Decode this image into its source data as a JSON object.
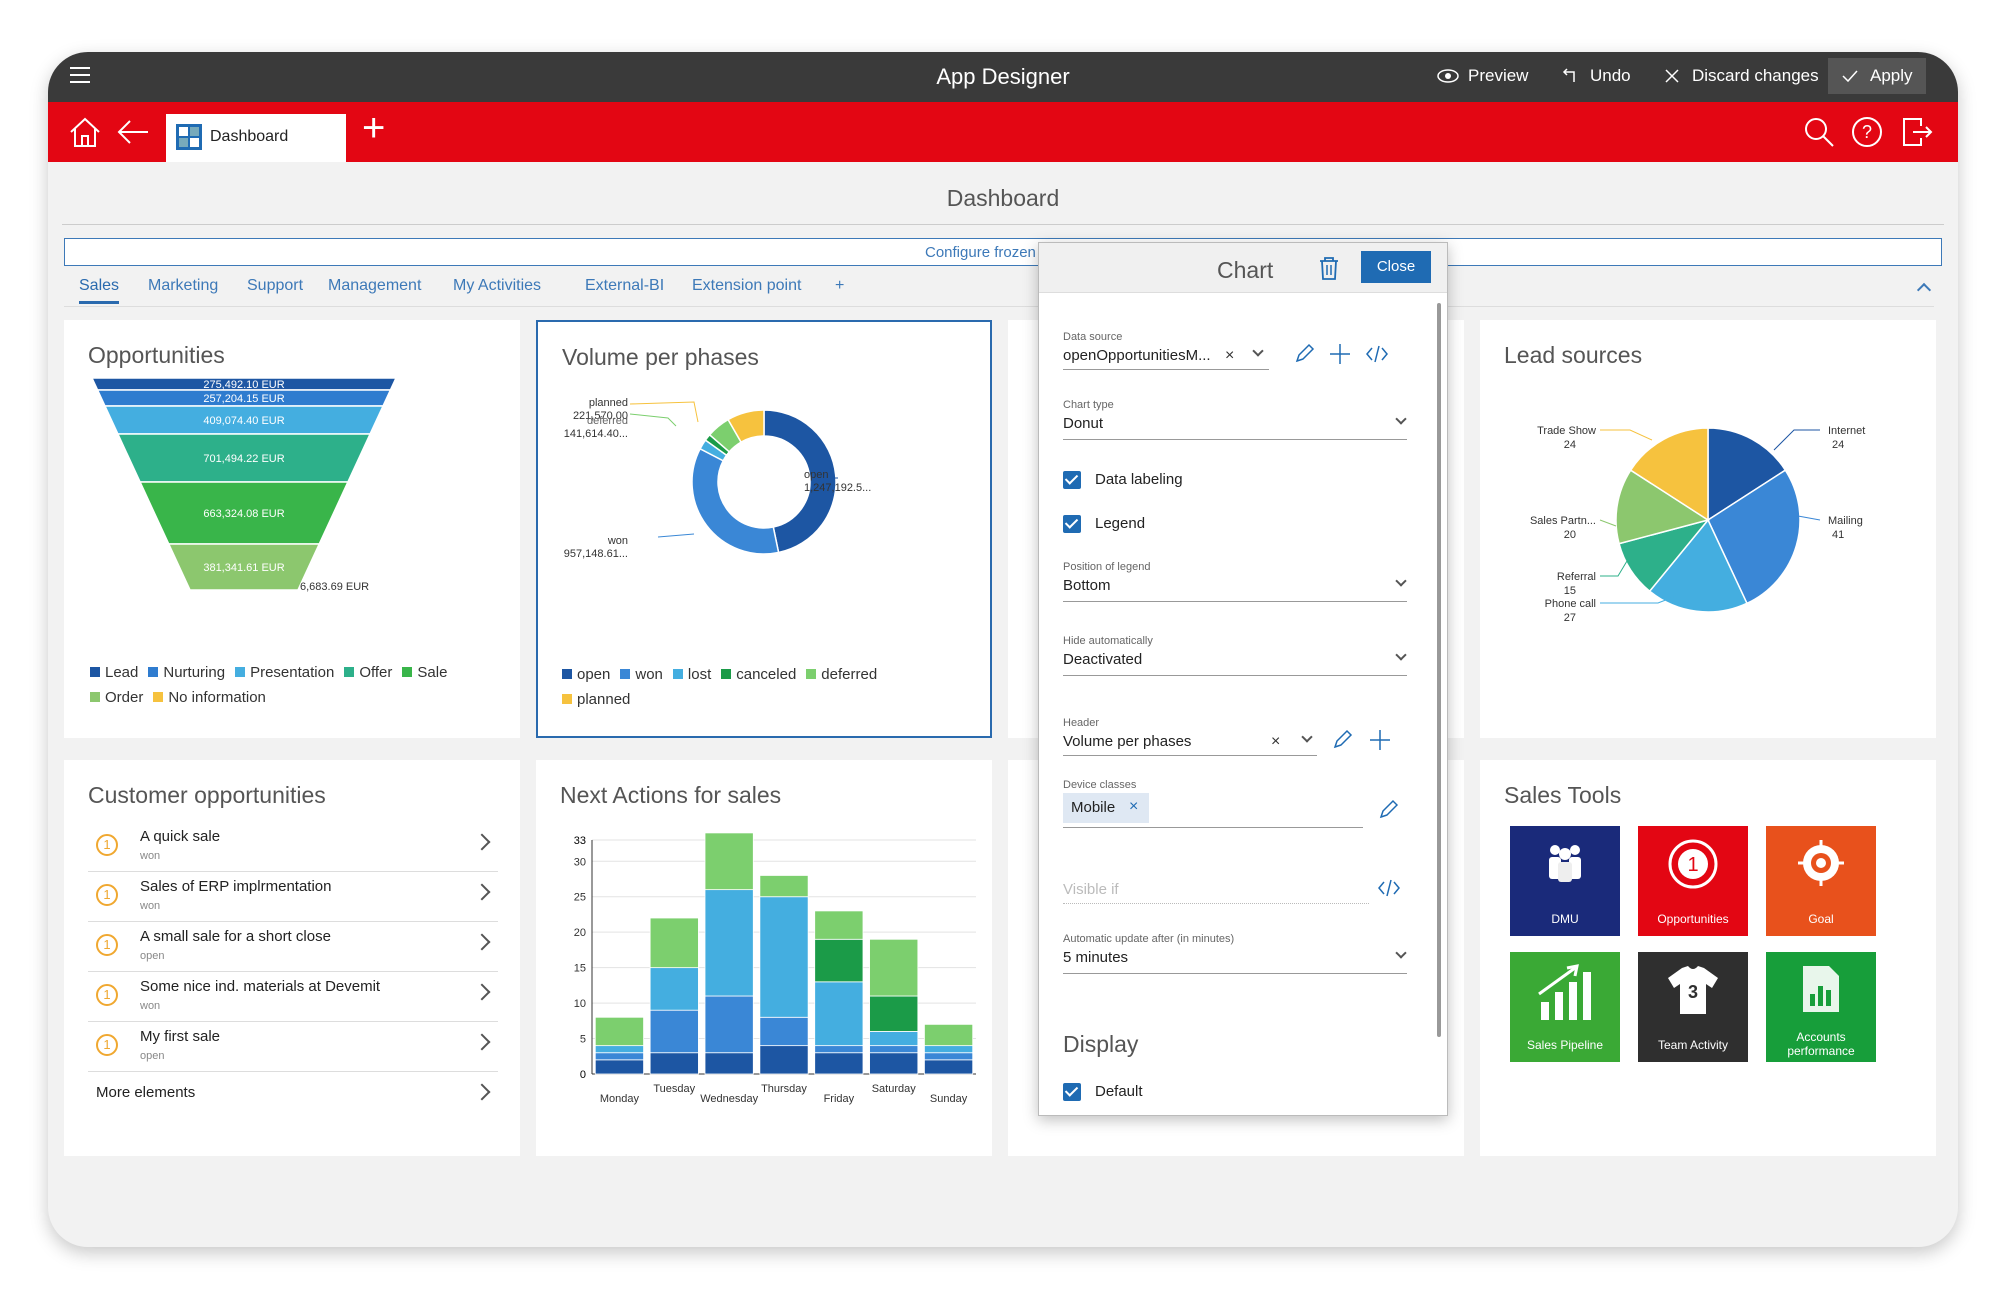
{
  "app": {
    "title": "App Designer",
    "preview": "Preview",
    "undo": "Undo",
    "discard": "Discard changes",
    "apply": "Apply"
  },
  "tabbar": {
    "active_tab": "Dashboard",
    "add": "+"
  },
  "page": {
    "title": "Dashboard",
    "config_link": "Configure frozen"
  },
  "subtabs": [
    "Sales",
    "Marketing",
    "Support",
    "Management",
    "My Activities",
    "External-BI",
    "Extension point",
    "+"
  ],
  "cards": {
    "opportunities": {
      "title": "Opportunities",
      "levels": [
        "275,492.10 EUR",
        "257,204.15 EUR",
        "409,074.40 EUR",
        "701,494.22 EUR",
        "663,324.08 EUR",
        "381,341.61 EUR",
        "6,683.69 EUR"
      ],
      "legend": [
        "Lead",
        "Nurturing",
        "Presentation",
        "Offer",
        "Sale",
        "Order",
        "No information"
      ]
    },
    "volume": {
      "title": "Volume per phases",
      "labels": {
        "planned": "planned",
        "planned_val": "221,570.00",
        "deferred": "deferred",
        "deferred_val": "141,614.40...",
        "open": "open",
        "open_val": "1,247,192.5...",
        "won": "won",
        "won_val": "957,148.61..."
      },
      "legend": [
        "open",
        "won",
        "lost",
        "canceled",
        "deferred",
        "planned"
      ]
    },
    "leads": {
      "title": "Lead sources",
      "labels": [
        {
          "name": "Internet",
          "value": "24"
        },
        {
          "name": "Mailing",
          "value": "41"
        },
        {
          "name": "Phone call",
          "value": "27"
        },
        {
          "name": "Referral",
          "value": "15"
        },
        {
          "name": "Sales Partn...",
          "value": "20"
        },
        {
          "name": "Trade Show",
          "value": "24"
        }
      ]
    },
    "customer": {
      "title": "Customer opportunities",
      "rows": [
        {
          "badge": "1",
          "name": "A quick sale",
          "status": "won"
        },
        {
          "badge": "1",
          "name": "Sales of ERP implrmentation",
          "status": "won"
        },
        {
          "badge": "1",
          "name": "A small sale for a short close",
          "status": "open"
        },
        {
          "badge": "1",
          "name": "Some nice ind. materials at Devemit",
          "status": "won"
        },
        {
          "badge": "1",
          "name": "My first sale",
          "status": "open"
        }
      ],
      "more": "More elements"
    },
    "actions": {
      "title": "Next Actions for sales"
    },
    "tools": {
      "title": "Sales Tools",
      "tiles": [
        {
          "label": "DMU"
        },
        {
          "label": "Opportunities"
        },
        {
          "label": "Goal"
        },
        {
          "label": "Sales Pipeline"
        },
        {
          "label": "Team Activity"
        },
        {
          "label": "Accounts performance"
        }
      ]
    }
  },
  "panel": {
    "title": "Chart",
    "close": "Close",
    "data_source_label": "Data source",
    "data_source_value": "openOpportunitiesM...",
    "chart_type_label": "Chart type",
    "chart_type_value": "Donut",
    "data_labeling": "Data labeling",
    "legend": "Legend",
    "legend_pos_label": "Position of legend",
    "legend_pos_value": "Bottom",
    "hide_label": "Hide automatically",
    "hide_value": "Deactivated",
    "header_label": "Header",
    "header_value": "Volume per phases",
    "device_label": "Device classes",
    "device_chip": "Mobile",
    "visible_if": "Visible if",
    "auto_update_label": "Automatic update after (in minutes)",
    "auto_update_value": "5 minutes",
    "display_title": "Display",
    "default": "Default"
  },
  "colors": {
    "red": "#e30613",
    "dark": "#3a3a3a",
    "blue": "#1f6bb3"
  },
  "chart_data": [
    {
      "type": "bar",
      "title": "Opportunities",
      "categories": [
        "Lead",
        "Nurturing",
        "Presentation",
        "Offer",
        "Sale",
        "Order",
        "No information"
      ],
      "values": [
        275492.1,
        257204.15,
        409074.4,
        701494.22,
        663324.08,
        381341.61,
        6683.69
      ]
    },
    {
      "type": "pie",
      "title": "Volume per phases",
      "categories": [
        "open",
        "won",
        "lost",
        "canceled",
        "deferred",
        "planned"
      ],
      "values": [
        1247192.5,
        957148.61,
        60000,
        40000,
        141614.4,
        221570.0
      ]
    },
    {
      "type": "pie",
      "title": "Lead sources",
      "categories": [
        "Internet",
        "Mailing",
        "Phone call",
        "Referral",
        "Sales Partn...",
        "Trade Show"
      ],
      "values": [
        24,
        41,
        27,
        15,
        20,
        24
      ]
    },
    {
      "type": "bar",
      "title": "Next Actions for sales",
      "categories": [
        "Monday",
        "Tuesday",
        "Wednesday",
        "Thursday",
        "Friday",
        "Saturday",
        "Sunday"
      ],
      "ylim": [
        0,
        33
      ],
      "yticks": [
        "33",
        "30",
        "25",
        "20",
        "15",
        "10",
        "5",
        "0"
      ],
      "series": [
        {
          "values": [
            2,
            3,
            3,
            4,
            3,
            3,
            2
          ]
        },
        {
          "values": [
            1,
            6,
            8,
            4,
            1,
            1,
            1
          ]
        },
        {
          "values": [
            1,
            6,
            15,
            17,
            9,
            2,
            1
          ]
        },
        {
          "values": [
            0,
            0,
            0,
            0,
            6,
            5,
            0
          ]
        },
        {
          "values": [
            4,
            7,
            8,
            3,
            4,
            8,
            3
          ]
        }
      ]
    }
  ]
}
